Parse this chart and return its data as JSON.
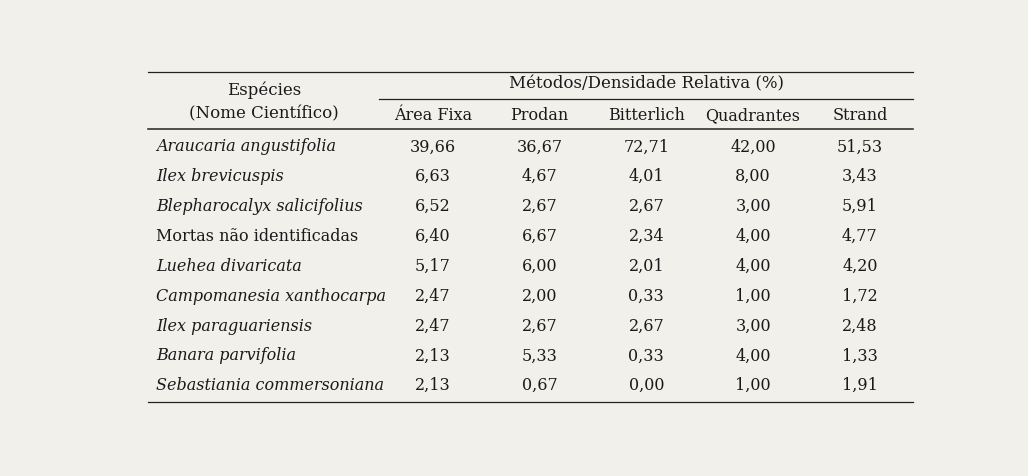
{
  "header_col": "Espécies\n(Nome Científico)",
  "header_methods_top": "Métodos/Densidade Relativa (%)",
  "header_methods_sub": [
    "Área Fixa",
    "Prodan",
    "Bitterlich",
    "Quadrantes",
    "Strand"
  ],
  "species": [
    "Araucaria angustifolia",
    "Ilex brevicuspis",
    "Blepharocalyx salicifolius",
    "Mortas não identificadas",
    "Luehea divaricata",
    "Campomanesia xanthocarpa",
    "Ilex paraguariensis",
    "Banara parvifolia",
    "Sebastiania commersoniana"
  ],
  "species_italic": [
    true,
    true,
    true,
    false,
    true,
    true,
    true,
    true,
    true
  ],
  "data": [
    [
      "39,66",
      "36,67",
      "72,71",
      "42,00",
      "51,53"
    ],
    [
      "6,63",
      "4,67",
      "4,01",
      "8,00",
      "3,43"
    ],
    [
      "6,52",
      "2,67",
      "2,67",
      "3,00",
      "5,91"
    ],
    [
      "6,40",
      "6,67",
      "2,34",
      "4,00",
      "4,77"
    ],
    [
      "5,17",
      "6,00",
      "2,01",
      "4,00",
      "4,20"
    ],
    [
      "2,47",
      "2,00",
      "0,33",
      "1,00",
      "1,72"
    ],
    [
      "2,47",
      "2,67",
      "2,67",
      "3,00",
      "2,48"
    ],
    [
      "2,13",
      "5,33",
      "0,33",
      "4,00",
      "1,33"
    ],
    [
      "2,13",
      "0,67",
      "0,00",
      "1,00",
      "1,91"
    ]
  ],
  "bg_color": "#f2f0eb",
  "text_color": "#1a1a1a",
  "line_color": "#222222",
  "font_size": 11.5,
  "header_font_size": 12
}
